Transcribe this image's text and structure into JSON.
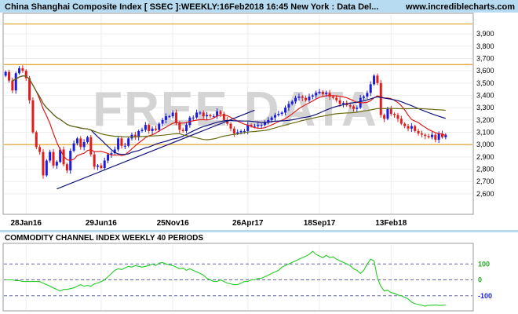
{
  "header": {
    "title": "China Shanghai Composite Index [ SSEC ]:WEEKLY:16Feb2018 16:45 New York : Data Del...",
    "url": "www.incrediblecharts.com"
  },
  "watermark": "FREE DATA",
  "colors": {
    "header_bg": "#b7dcf2",
    "grid": "#ededed",
    "bull_candle": "#1c1ce0",
    "bear_candle": "#e01c1c",
    "ma_fast": "#e01c1c",
    "ma_mid": "#12127a",
    "ma_slow": "#6b6b12",
    "level_line": "#e0a020",
    "trend_line": "#12127a",
    "cci_line": "#22cc22",
    "cci_band": "#6464b4",
    "cci_label_100": "#22aa22",
    "cci_label_neg100": "#1c1ce0"
  },
  "chart_data": [
    {
      "type": "candlestick",
      "title": "China Shanghai Composite Index [ SSEC ]:WEEKLY:16Feb2018 16:45 New York : Data Del...",
      "ylim": [
        2440,
        4060
      ],
      "y_ticks": [
        "2,600",
        "2,700",
        "2,800",
        "2,900",
        "3,000",
        "3,100",
        "3,200",
        "3,300",
        "3,400",
        "3,500",
        "3,600",
        "3,700",
        "3,800",
        "3,900"
      ],
      "x_labels": [
        {
          "label": "28Jan16",
          "week": 6
        },
        {
          "label": "29Jun16",
          "week": 28
        },
        {
          "label": "25Nov16",
          "week": 49
        },
        {
          "label": "26Apr17",
          "week": 71
        },
        {
          "label": "18Sep17",
          "week": 92
        },
        {
          "label": "13Feb18",
          "week": 113
        }
      ],
      "weeks": 130,
      "horizontal_lines": [
        3980,
        3650,
        3000
      ],
      "trend_line": [
        {
          "week": 15,
          "value": 2640
        },
        {
          "week": 73,
          "value": 3280
        }
      ],
      "closes": [
        3590,
        3520,
        3440,
        3580,
        3620,
        3600,
        3540,
        3360,
        3100,
        2980,
        2940,
        2750,
        2870,
        2940,
        2830,
        2860,
        2960,
        2840,
        2790,
        2950,
        3010,
        3050,
        2980,
        3020,
        3060,
        2920,
        2820,
        2830,
        2810,
        2870,
        2920,
        2930,
        2960,
        3050,
        2990,
        2990,
        3050,
        3080,
        3060,
        3110,
        3120,
        3160,
        3110,
        3130,
        3120,
        3170,
        3200,
        3230,
        3230,
        3260,
        3180,
        3120,
        3110,
        3160,
        3220,
        3220,
        3260,
        3260,
        3230,
        3240,
        3230,
        3230,
        3270,
        3250,
        3200,
        3170,
        3130,
        3090,
        3100,
        3110,
        3110,
        3160,
        3150,
        3150,
        3160,
        3160,
        3180,
        3200,
        3220,
        3240,
        3250,
        3260,
        3300,
        3330,
        3350,
        3380,
        3390,
        3380,
        3360,
        3390,
        3400,
        3420,
        3430,
        3410,
        3420,
        3390,
        3380,
        3360,
        3330,
        3340,
        3320,
        3310,
        3290,
        3300,
        3380,
        3390,
        3420,
        3490,
        3560,
        3500,
        3240,
        3210,
        3290,
        3250,
        3240,
        3210,
        3170,
        3150,
        3130,
        3150,
        3110,
        3090,
        3080,
        3070,
        3060,
        3080,
        3040,
        3090,
        3060,
        3080
      ],
      "series": [
        {
          "name": "",
          "role": "ma_fast",
          "period": 10
        },
        {
          "name": "",
          "role": "ma_mid",
          "period": 26
        },
        {
          "name": "",
          "role": "ma_slow",
          "period": 52
        }
      ]
    },
    {
      "type": "line",
      "title": "COMMODITY CHANNEL INDEX WEEKLY 40 PERIODS",
      "ylim": [
        -190,
        220
      ],
      "bands": [
        100,
        0,
        -100
      ],
      "band_labels": [
        "100",
        "0",
        "-100"
      ],
      "values": [
        0,
        0,
        0,
        -5,
        -5,
        -10,
        -10,
        -10,
        -10,
        -10,
        -10,
        -20,
        -30,
        -40,
        -50,
        -60,
        -70,
        -60,
        -60,
        -55,
        -50,
        -40,
        -30,
        -40,
        -35,
        -40,
        -25,
        -20,
        -10,
        0,
        20,
        40,
        60,
        70,
        65,
        75,
        85,
        80,
        90,
        85,
        80,
        85,
        90,
        100,
        90,
        105,
        110,
        100,
        95,
        90,
        80,
        70,
        75,
        60,
        70,
        60,
        50,
        40,
        30,
        10,
        0,
        -10,
        -10,
        0,
        -10,
        -20,
        -25,
        -30,
        -30,
        -20,
        -10,
        -10,
        0,
        0,
        10,
        10,
        20,
        30,
        40,
        50,
        60,
        80,
        90,
        100,
        110,
        120,
        130,
        140,
        150,
        160,
        180,
        160,
        150,
        140,
        155,
        140,
        145,
        130,
        120,
        110,
        100,
        90,
        70,
        60,
        40,
        60,
        100,
        130,
        120,
        10,
        -40,
        -70,
        -65,
        -80,
        -85,
        -95,
        -100,
        -110,
        -120,
        -140,
        -150,
        -155,
        -160,
        -165,
        -160,
        -160,
        -158,
        -160,
        -160,
        -158
      ]
    }
  ]
}
